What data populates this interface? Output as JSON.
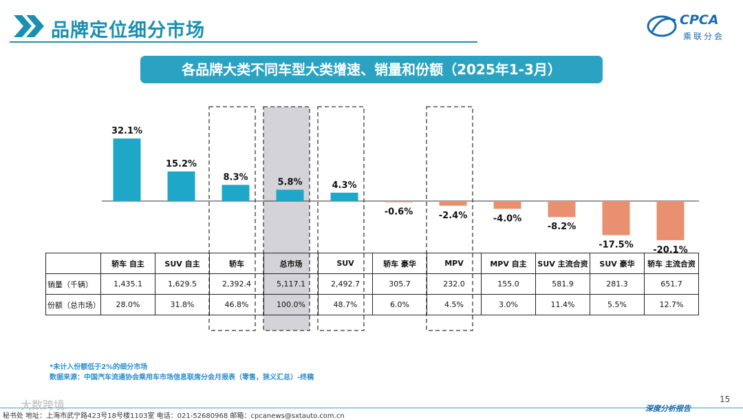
{
  "header": {
    "title": "品牌定位细分市场",
    "logo_text": "CPCA",
    "logo_sub": "乘联分会"
  },
  "subtitle": "各品牌大类不同车型大类增速、销量和份额（2025年1-3月）",
  "colors": {
    "positive": "#1ea7c8",
    "negative": "#e8906f",
    "highlight": "#d4d4d8",
    "accent": "#1a8fb0"
  },
  "chart_data": {
    "type": "bar",
    "categories": [
      "轿车 自主",
      "SUV 自主",
      "轿车",
      "总市场",
      "SUV",
      "轿车 豪华",
      "MPV",
      "MPV 自主",
      "SUV 主流合资",
      "SUV 豪华",
      "轿车 主流合资"
    ],
    "values": [
      32.1,
      15.2,
      8.3,
      5.8,
      4.3,
      -0.6,
      -2.4,
      -4.0,
      -8.2,
      -17.5,
      -20.1
    ],
    "value_labels": [
      "32.1%",
      "15.2%",
      "8.3%",
      "5.8%",
      "4.3%",
      "-0.6%",
      "-2.4%",
      "-4.0%",
      "-8.2%",
      "-17.5%",
      "-20.1%"
    ],
    "ylim": [
      -22,
      40
    ],
    "dashed_boxes": [
      2,
      4,
      6
    ],
    "highlight_box": 3
  },
  "table": {
    "row_labels": [
      "销量（千辆）",
      "份额（总市场）"
    ],
    "sales": [
      "1,435.1",
      "1,629.5",
      "2,392.4",
      "5,117.1",
      "2,492.7",
      "305.7",
      "232.0",
      "155.0",
      "581.9",
      "281.3",
      "651.7"
    ],
    "share": [
      "28.0%",
      "31.8%",
      "46.8%",
      "100.0%",
      "48.7%",
      "6.0%",
      "4.5%",
      "3.0%",
      "11.4%",
      "5.5%",
      "12.7%"
    ]
  },
  "footnotes": {
    "note": "*未计入份额低于2%的细分市场",
    "source": "数据来源：中国汽车流通协会乘用车市场信息联席分会月报表（零售，狭义汇总）-终稿"
  },
  "footer": {
    "address": "秘书处   地址：上海市武宁路423号18号楼1103室   电话：021-52680968   邮箱：cpcanews@sxtauto.com.cn",
    "report": "深度分析报告",
    "page": "15",
    "watermark": "大数跨境"
  }
}
